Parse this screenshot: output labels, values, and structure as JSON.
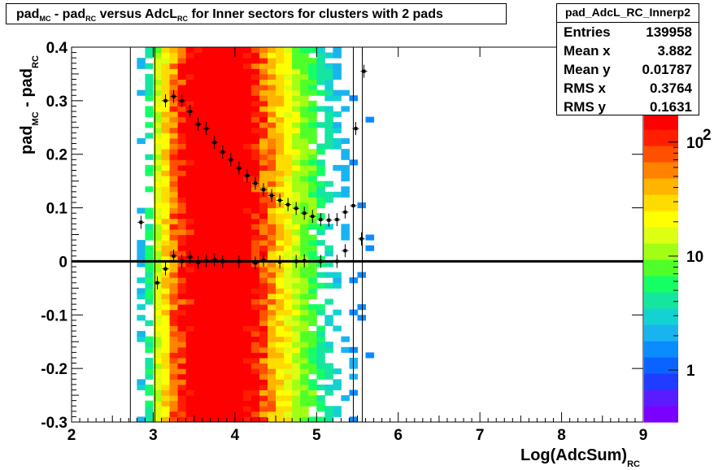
{
  "title_parts": {
    "a": "pad",
    "a_sub": "MC",
    "b": " - pad",
    "b_sub": "RC",
    "c": " versus AdcL",
    "c_sub": "RC",
    "d": " for Inner sectors for clusters with 2 pads"
  },
  "stats": {
    "name": "pad_AdcL_RC_Innerp2",
    "rows": [
      {
        "label": "Entries",
        "value": "139958"
      },
      {
        "label": "Mean x",
        "value": "3.882"
      },
      {
        "label": "Mean y",
        "value": "0.01787"
      },
      {
        "label": "RMS x",
        "value": "0.3764"
      },
      {
        "label": "RMS y",
        "value": "0.1631"
      }
    ]
  },
  "colors": {
    "palette": [
      "#7a00ff",
      "#5a1cff",
      "#1f3cff",
      "#0a63ff",
      "#0a8cff",
      "#19b4f0",
      "#14d2d2",
      "#14e6a0",
      "#14ff64",
      "#50ff28",
      "#a0ff14",
      "#dcff14",
      "#ffff00",
      "#ffdc00",
      "#ffb400",
      "#ff8200",
      "#ff5000",
      "#ff1e00",
      "#ff0000"
    ],
    "profile": "#000000"
  },
  "chart_data": {
    "type": "heatmap",
    "title": "pad_MC - pad_RC versus AdcL_RC for Inner sectors for clusters with 2 pads",
    "xlabel_main": "Log(AdcSum)",
    "xlabel_sub": "RC",
    "ylabel_main": "pad",
    "ylabel_sub1": "MC",
    "ylabel_mid": " - pad",
    "ylabel_sub2": "RC",
    "xlim": [
      2,
      9
    ],
    "ylim": [
      -0.3,
      0.4
    ],
    "x_ticks": [
      "2",
      "3",
      "4",
      "5",
      "6",
      "7",
      "8",
      "9"
    ],
    "y_ticks": [
      "-0.3",
      "-0.2",
      "-0.1",
      "0",
      "0.1",
      "0.2",
      "0.3",
      "0.4"
    ],
    "z_scale": "log",
    "z_ticks": [
      "1",
      "10",
      "10^2"
    ],
    "z_tick_values": [
      1,
      10,
      100
    ],
    "density_bands": [
      {
        "x": 2.85,
        "level": 0.1
      },
      {
        "x": 2.95,
        "level": 0.22
      },
      {
        "x": 3.05,
        "level": 0.38
      },
      {
        "x": 3.15,
        "level": 0.5
      },
      {
        "x": 3.25,
        "level": 0.62
      },
      {
        "x": 3.35,
        "level": 0.72
      },
      {
        "x": 3.45,
        "level": 0.8
      },
      {
        "x": 3.55,
        "level": 0.88
      },
      {
        "x": 3.65,
        "level": 0.94
      },
      {
        "x": 3.75,
        "level": 0.98
      },
      {
        "x": 3.85,
        "level": 1.0
      },
      {
        "x": 3.95,
        "level": 0.97
      },
      {
        "x": 4.05,
        "level": 0.9
      },
      {
        "x": 4.15,
        "level": 0.82
      },
      {
        "x": 4.25,
        "level": 0.74
      },
      {
        "x": 4.35,
        "level": 0.66
      },
      {
        "x": 4.45,
        "level": 0.58
      },
      {
        "x": 4.55,
        "level": 0.5
      },
      {
        "x": 4.65,
        "level": 0.44
      },
      {
        "x": 4.75,
        "level": 0.38
      },
      {
        "x": 4.85,
        "level": 0.32
      },
      {
        "x": 4.95,
        "level": 0.28
      },
      {
        "x": 5.05,
        "level": 0.22
      },
      {
        "x": 5.15,
        "level": 0.17
      },
      {
        "x": 5.25,
        "level": 0.12
      },
      {
        "x": 5.35,
        "level": 0.08
      },
      {
        "x": 5.45,
        "level": 0.05
      },
      {
        "x": 5.55,
        "level": 0.03
      },
      {
        "x": 5.65,
        "level": 0.02
      }
    ],
    "upper_profile": [
      {
        "x": 2.85,
        "y": 0.073
      },
      {
        "x": 3.05,
        "y": -0.04
      },
      {
        "x": 3.15,
        "y": 0.3
      },
      {
        "x": 3.25,
        "y": 0.308
      },
      {
        "x": 3.35,
        "y": 0.3
      },
      {
        "x": 3.45,
        "y": 0.28
      },
      {
        "x": 3.55,
        "y": 0.256
      },
      {
        "x": 3.65,
        "y": 0.248
      },
      {
        "x": 3.75,
        "y": 0.222
      },
      {
        "x": 3.85,
        "y": 0.204
      },
      {
        "x": 3.95,
        "y": 0.19
      },
      {
        "x": 4.05,
        "y": 0.174
      },
      {
        "x": 4.15,
        "y": 0.16
      },
      {
        "x": 4.25,
        "y": 0.146
      },
      {
        "x": 4.35,
        "y": 0.134
      },
      {
        "x": 4.45,
        "y": 0.123
      },
      {
        "x": 4.55,
        "y": 0.114
      },
      {
        "x": 4.65,
        "y": 0.106
      },
      {
        "x": 4.75,
        "y": 0.099
      },
      {
        "x": 4.85,
        "y": 0.09
      },
      {
        "x": 4.95,
        "y": 0.084
      },
      {
        "x": 5.05,
        "y": 0.078
      },
      {
        "x": 5.15,
        "y": 0.077
      },
      {
        "x": 5.25,
        "y": 0.078
      },
      {
        "x": 5.35,
        "y": 0.092
      },
      {
        "x": 5.45,
        "y": 0.104
      },
      {
        "x": 5.48,
        "y": 0.248
      },
      {
        "x": 5.58,
        "y": 0.355
      }
    ],
    "lower_profile": [
      {
        "x": 3.15,
        "y": -0.014
      },
      {
        "x": 3.25,
        "y": 0.01
      },
      {
        "x": 3.35,
        "y": 0.0
      },
      {
        "x": 3.45,
        "y": 0.008
      },
      {
        "x": 3.55,
        "y": -0.002
      },
      {
        "x": 3.65,
        "y": 0.001
      },
      {
        "x": 3.75,
        "y": 0.003
      },
      {
        "x": 3.85,
        "y": 0.0
      },
      {
        "x": 4.05,
        "y": 0.0
      },
      {
        "x": 4.25,
        "y": -0.003
      },
      {
        "x": 4.35,
        "y": 0.002
      },
      {
        "x": 4.55,
        "y": -0.001
      },
      {
        "x": 4.75,
        "y": 0.0
      },
      {
        "x": 4.85,
        "y": 0.001
      },
      {
        "x": 5.05,
        "y": 0.0
      },
      {
        "x": 5.25,
        "y": 0.0
      },
      {
        "x": 5.35,
        "y": 0.02
      },
      {
        "x": 5.55,
        "y": 0.042
      }
    ],
    "zero_line_y": 0,
    "vertical_lines_x": [
      2.72,
      3.02,
      5.45,
      5.56
    ]
  }
}
